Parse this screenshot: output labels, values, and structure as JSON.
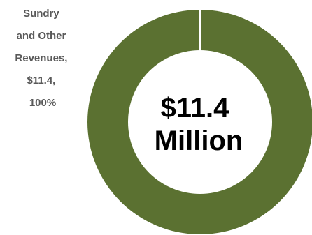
{
  "chart_data": {
    "type": "pie",
    "style": "donut",
    "slices": [
      {
        "label": "Sundry and Other Revenues",
        "value": 11.4,
        "value_label": "$11.4",
        "percent": 100,
        "percent_label": "100%",
        "color": "#5B7131"
      }
    ],
    "slice_label_lines": [
      "Sundry",
      "and Other",
      "Revenues,",
      "$11.4,",
      "100%"
    ],
    "center_label_lines": [
      "$11.4",
      "Million"
    ]
  },
  "colors": {
    "separator": "#ffffff",
    "label_text": "#595959",
    "center_text": "#000000"
  }
}
